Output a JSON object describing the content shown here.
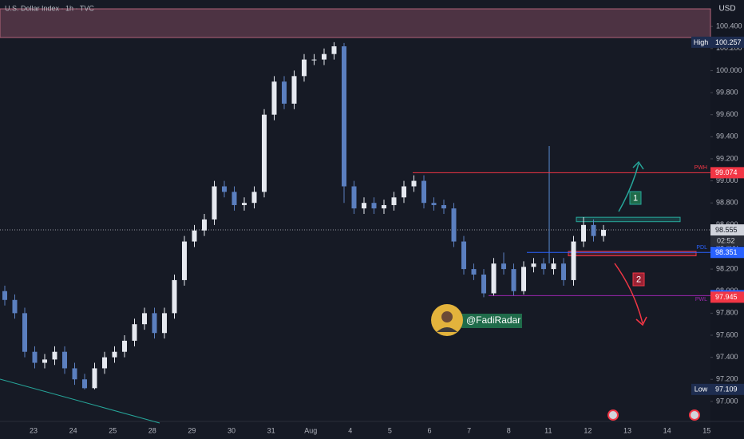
{
  "chart_data": {
    "type": "candlestick",
    "title": "U.S. Dollar Index · 1h · TVC",
    "currency": "USD",
    "categories": [
      "23",
      "24",
      "25",
      "28",
      "29",
      "30",
      "31",
      "Aug",
      "4",
      "5",
      "6",
      "7",
      "8",
      "11",
      "12",
      "13",
      "14",
      "15"
    ],
    "ylim": [
      96.84,
      100.64
    ],
    "yticks": [
      {
        "value": 97.0,
        "label": "97.000"
      },
      {
        "value": 97.2,
        "label": "97.200"
      },
      {
        "value": 97.4,
        "label": "97.400"
      },
      {
        "value": 97.6,
        "label": "97.600"
      },
      {
        "value": 97.8,
        "label": "97.800"
      },
      {
        "value": 98.0,
        "label": "98.000"
      },
      {
        "value": 98.2,
        "label": "98.200"
      },
      {
        "value": 98.4,
        "label": "98.400"
      },
      {
        "value": 98.6,
        "label": "98.600"
      },
      {
        "value": 98.8,
        "label": "98.800"
      },
      {
        "value": 99.0,
        "label": "99.000"
      },
      {
        "value": 99.2,
        "label": "99.200"
      },
      {
        "value": 99.4,
        "label": "99.400"
      },
      {
        "value": 99.6,
        "label": "99.600"
      },
      {
        "value": 99.8,
        "label": "99.800"
      },
      {
        "value": 100.0,
        "label": "100.000"
      },
      {
        "value": 100.2,
        "label": "100.200"
      },
      {
        "value": 100.4,
        "label": "100.400"
      }
    ],
    "up_color": "#e6e9f0",
    "down_color": "#5b7fbf",
    "ohlc": [
      [
        98.0,
        98.05,
        97.87,
        97.92
      ],
      [
        97.92,
        97.97,
        97.75,
        97.8
      ],
      [
        97.8,
        97.85,
        97.4,
        97.45
      ],
      [
        97.45,
        97.5,
        97.3,
        97.35
      ],
      [
        97.35,
        97.43,
        97.3,
        97.38
      ],
      [
        97.38,
        97.5,
        97.33,
        97.45
      ],
      [
        97.45,
        97.5,
        97.25,
        97.3
      ],
      [
        97.3,
        97.35,
        97.15,
        97.2
      ],
      [
        97.2,
        97.25,
        97.109,
        97.12
      ],
      [
        97.12,
        97.35,
        97.11,
        97.3
      ],
      [
        97.3,
        97.45,
        97.25,
        97.4
      ],
      [
        97.4,
        97.5,
        97.35,
        97.45
      ],
      [
        97.45,
        97.6,
        97.4,
        97.55
      ],
      [
        97.55,
        97.75,
        97.5,
        97.7
      ],
      [
        97.7,
        97.85,
        97.65,
        97.8
      ],
      [
        97.8,
        97.85,
        97.57,
        97.62
      ],
      [
        97.62,
        97.85,
        97.57,
        97.8
      ],
      [
        97.8,
        98.15,
        97.75,
        98.1
      ],
      [
        98.1,
        98.5,
        98.05,
        98.45
      ],
      [
        98.45,
        98.6,
        98.4,
        98.55
      ],
      [
        98.55,
        98.7,
        98.5,
        98.65
      ],
      [
        98.65,
        99.0,
        98.6,
        98.95
      ],
      [
        98.95,
        99.0,
        98.85,
        98.9
      ],
      [
        98.9,
        98.95,
        98.73,
        98.78
      ],
      [
        98.78,
        98.85,
        98.73,
        98.8
      ],
      [
        98.8,
        98.95,
        98.75,
        98.9
      ],
      [
        98.9,
        99.65,
        98.85,
        99.6
      ],
      [
        99.6,
        99.95,
        99.55,
        99.9
      ],
      [
        99.9,
        99.95,
        99.65,
        99.7
      ],
      [
        99.7,
        100.0,
        99.65,
        99.95
      ],
      [
        99.95,
        100.15,
        99.9,
        100.1
      ],
      [
        100.1,
        100.15,
        100.05,
        100.1
      ],
      [
        100.1,
        100.2,
        100.05,
        100.15
      ],
      [
        100.15,
        100.257,
        100.1,
        100.22
      ],
      [
        100.22,
        100.25,
        98.8,
        98.95
      ],
      [
        98.95,
        99.0,
        98.7,
        98.75
      ],
      [
        98.75,
        98.85,
        98.7,
        98.8
      ],
      [
        98.8,
        98.85,
        98.7,
        98.75
      ],
      [
        98.75,
        98.83,
        98.7,
        98.78
      ],
      [
        98.78,
        98.9,
        98.73,
        98.85
      ],
      [
        98.85,
        99.0,
        98.8,
        98.95
      ],
      [
        98.95,
        99.05,
        98.9,
        99.0
      ],
      [
        99.0,
        99.05,
        98.75,
        98.8
      ],
      [
        98.8,
        98.85,
        98.73,
        98.78
      ],
      [
        98.78,
        98.83,
        98.7,
        98.75
      ],
      [
        98.75,
        98.8,
        98.4,
        98.45
      ],
      [
        98.45,
        98.5,
        98.15,
        98.2
      ],
      [
        98.2,
        98.25,
        98.1,
        98.15
      ],
      [
        98.15,
        98.2,
        97.945,
        97.98
      ],
      [
        97.98,
        98.3,
        97.96,
        98.25
      ],
      [
        98.25,
        98.35,
        98.15,
        98.2
      ],
      [
        98.2,
        98.25,
        97.96,
        98.0
      ],
      [
        98.0,
        98.27,
        97.97,
        98.22
      ],
      [
        98.22,
        98.3,
        98.17,
        98.25
      ],
      [
        98.25,
        98.3,
        98.15,
        98.2
      ],
      [
        98.2,
        98.3,
        98.15,
        98.25
      ],
      [
        98.25,
        98.3,
        98.05,
        98.1
      ],
      [
        98.1,
        98.5,
        98.05,
        98.45
      ],
      [
        98.45,
        98.67,
        98.4,
        98.6
      ],
      [
        98.6,
        98.65,
        98.45,
        98.5
      ],
      [
        98.5,
        98.6,
        98.45,
        98.555
      ]
    ],
    "zone": {
      "from": 100.3,
      "to": 100.56,
      "color": "#b4647a"
    },
    "boxes": [
      {
        "from": 98.63,
        "to": 98.67,
        "color": "#26a69a"
      },
      {
        "from": 98.32,
        "to": 98.36,
        "color": "#f23645"
      }
    ],
    "levels": [
      {
        "name": "PWH",
        "value": 99.074,
        "color": "#f23645"
      },
      {
        "name": "PDL",
        "value": 98.351,
        "color": "#2962ff"
      },
      {
        "name": "PWL",
        "value": 97.959,
        "color": "#9c27b0"
      }
    ],
    "price_tags": [
      {
        "value": 100.257,
        "label": "High",
        "color": "#1e2d50"
      },
      {
        "value": 99.074,
        "color": "#f23645"
      },
      {
        "value": 98.555,
        "color": "#d1d4dc"
      },
      {
        "value": 98.351,
        "color": "#2962ff"
      },
      {
        "value": 97.959,
        "color": "#2962ff"
      },
      {
        "value": 97.945,
        "color": "#f23645"
      },
      {
        "value": 97.109,
        "label": "Low",
        "color": "#1e2d50"
      }
    ],
    "countdown": "02:52",
    "scenarios": [
      "1",
      "2"
    ],
    "author": "@FadiRadar"
  }
}
